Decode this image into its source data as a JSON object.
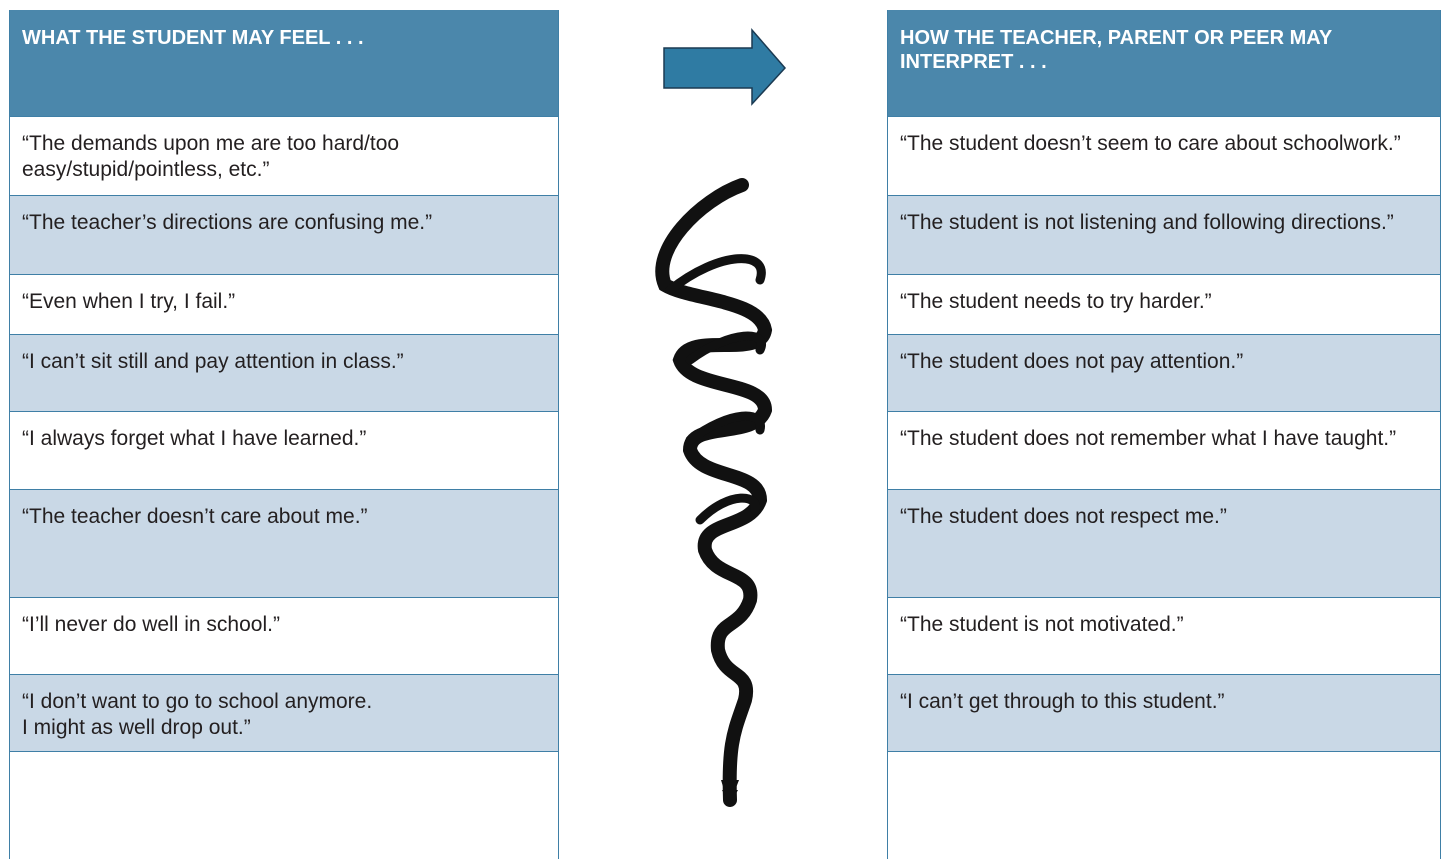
{
  "header": {
    "left": "WHAT THE STUDENT MAY FEEL . . .",
    "right": "HOW THE TEACHER, PARENT OR PEER MAY INTERPRET . . ."
  },
  "table": {
    "rows": [
      [
        "“The demands upon me are too hard/too easy/stupid/pointless, etc.”",
        "“The student doesn’t seem to care about schoolwork.”"
      ],
      [
        "“The teacher’s directions are confusing me.”",
        "“The student is not listening and following directions.”"
      ],
      [
        "“Even when I try, I fail.”",
        "“The student needs to try harder.”"
      ],
      [
        "“I can’t sit still and pay attention in class.”",
        "“The student does not pay attention.”"
      ],
      [
        "“I always forget what I have learned.”",
        "“The student does not remember what I have taught.”"
      ],
      [
        "“The teacher doesn’t care about me.”",
        "“The student does not respect me.”"
      ],
      [
        "“I’ll never do well in school.”",
        "“The student is not motivated.”"
      ],
      [
        "“I don’t want to go to school anymore.\nI might as well drop out.”",
        "“I can’t get through to this student.”"
      ]
    ]
  }
}
